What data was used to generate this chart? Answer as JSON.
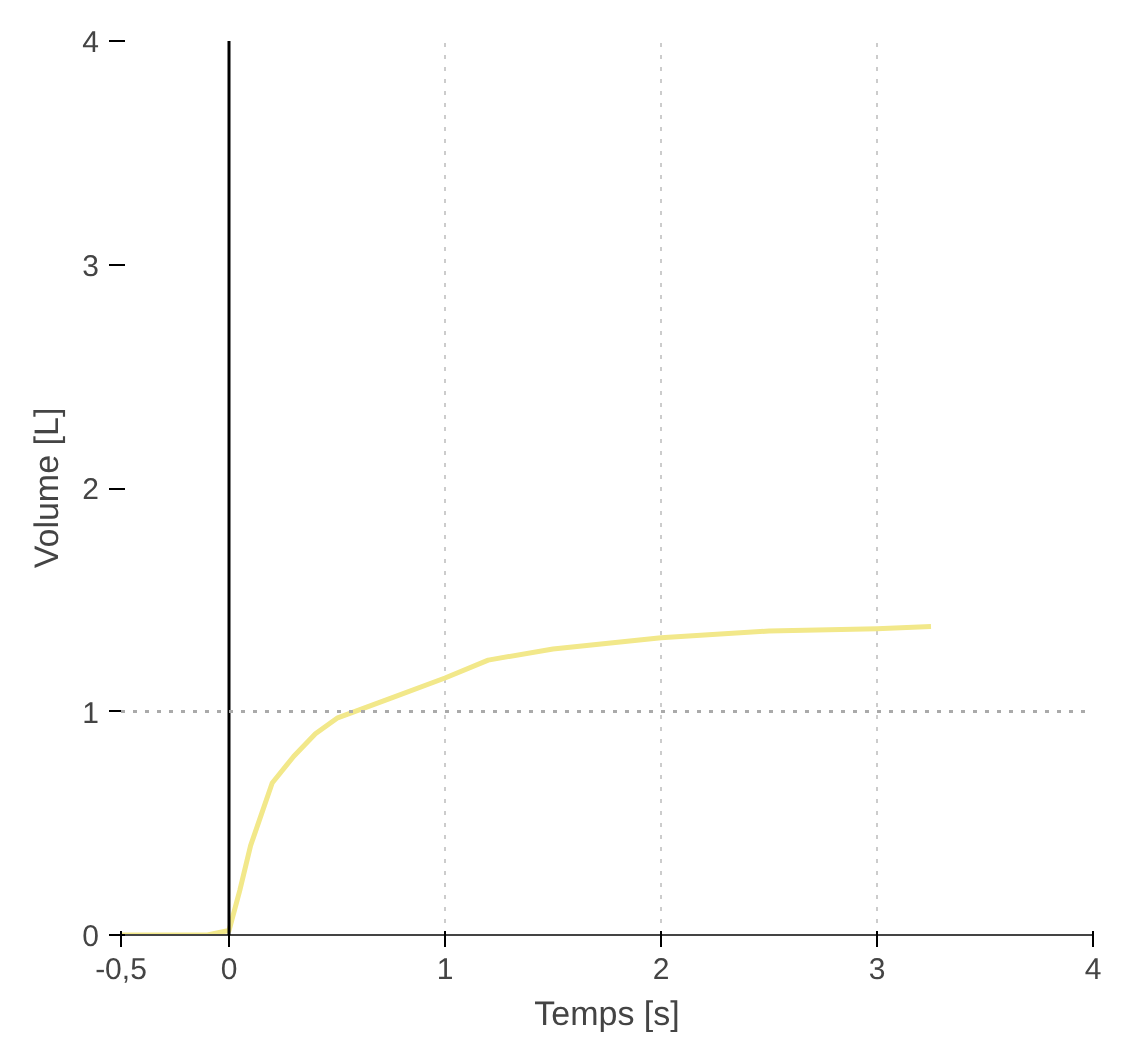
{
  "chart_data": {
    "type": "line",
    "xlabel": "Temps [s]",
    "ylabel": "Volume [L]",
    "x": [
      -0.5,
      -0.1,
      0,
      0.05,
      0.1,
      0.2,
      0.3,
      0.4,
      0.5,
      0.75,
      1.0,
      1.2,
      1.5,
      1.7,
      2.0,
      2.5,
      3.0,
      3.25
    ],
    "series": [
      {
        "color": "#f2e88a",
        "values": [
          0,
          0,
          0.02,
          0.2,
          0.4,
          0.68,
          0.8,
          0.9,
          0.97,
          1.06,
          1.15,
          1.23,
          1.28,
          1.3,
          1.33,
          1.36,
          1.37,
          1.38
        ]
      }
    ],
    "xlim": [
      -0.5,
      4
    ],
    "ylim": [
      0,
      4
    ],
    "xticks": [
      {
        "value": -0.5,
        "label": "-0,5"
      },
      0,
      1,
      2,
      3,
      4
    ],
    "yticks": [
      0,
      1,
      2,
      3,
      4
    ],
    "grid": "x",
    "ref_lines": [
      {
        "axis": "x",
        "value": 0,
        "color": "#000000",
        "line_style": "solid"
      },
      {
        "axis": "y",
        "value": 1,
        "color": "#aaaaaa",
        "line_style": "dotted"
      }
    ]
  }
}
